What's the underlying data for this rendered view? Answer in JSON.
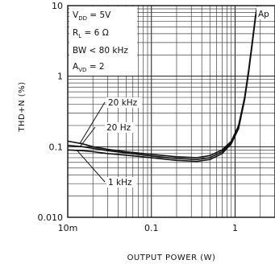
{
  "chart_data": {
    "type": "line",
    "xlabel": "OUTPUT POWER (W)",
    "ylabel": "THD+N (%)",
    "xscale": "log",
    "yscale": "log",
    "xlim": [
      0.01,
      3.0
    ],
    "ylim": [
      0.01,
      10
    ],
    "grid": true,
    "x_tick_labels": [
      {
        "value": 0.01,
        "label": "10m"
      },
      {
        "value": 0.1,
        "label": "0.1"
      },
      {
        "value": 1,
        "label": "1"
      }
    ],
    "y_tick_labels": [
      {
        "value": 10,
        "label": "10"
      },
      {
        "value": 1,
        "label": "1"
      },
      {
        "value": 0.1,
        "label": "0.1"
      },
      {
        "value": 0.01,
        "label": "0.010"
      }
    ],
    "conditions": [
      "V",
      "DD",
      " = 5V",
      "R",
      "L",
      " = 6 Ω",
      "BW < 80 kHz",
      "A",
      "VD",
      " = 2"
    ],
    "partial_label": "Ap",
    "series": [
      {
        "name": "20 kHz",
        "x": [
          0.01,
          0.015,
          0.02,
          0.03,
          0.05,
          0.1,
          0.2,
          0.35,
          0.5,
          0.7,
          0.9,
          1.1,
          1.3,
          1.45,
          1.6,
          1.75,
          1.85
        ],
        "y": [
          0.12,
          0.11,
          0.1,
          0.092,
          0.085,
          0.078,
          0.072,
          0.07,
          0.075,
          0.09,
          0.12,
          0.2,
          0.5,
          1.2,
          3.0,
          7.0,
          10
        ]
      },
      {
        "name": "20 Hz",
        "x": [
          0.01,
          0.015,
          0.02,
          0.03,
          0.05,
          0.1,
          0.2,
          0.35,
          0.5,
          0.7,
          0.9,
          1.1,
          1.3,
          1.45,
          1.6,
          1.75,
          1.85
        ],
        "y": [
          0.105,
          0.1,
          0.095,
          0.088,
          0.082,
          0.074,
          0.068,
          0.066,
          0.07,
          0.085,
          0.115,
          0.19,
          0.48,
          1.15,
          2.9,
          6.8,
          10
        ]
      },
      {
        "name": "1 kHz",
        "x": [
          0.01,
          0.015,
          0.02,
          0.03,
          0.05,
          0.1,
          0.2,
          0.35,
          0.5,
          0.7,
          0.9,
          1.1,
          1.3,
          1.45,
          1.6,
          1.75,
          1.85
        ],
        "y": [
          0.09,
          0.088,
          0.085,
          0.08,
          0.076,
          0.07,
          0.064,
          0.062,
          0.066,
          0.08,
          0.11,
          0.18,
          0.46,
          1.1,
          2.8,
          6.6,
          10
        ]
      }
    ],
    "annotations": [
      {
        "text": "20 kHz",
        "series": "20 kHz"
      },
      {
        "text": "20 Hz",
        "series": "20 Hz"
      },
      {
        "text": "1 kHz",
        "series": "1 kHz"
      }
    ]
  }
}
